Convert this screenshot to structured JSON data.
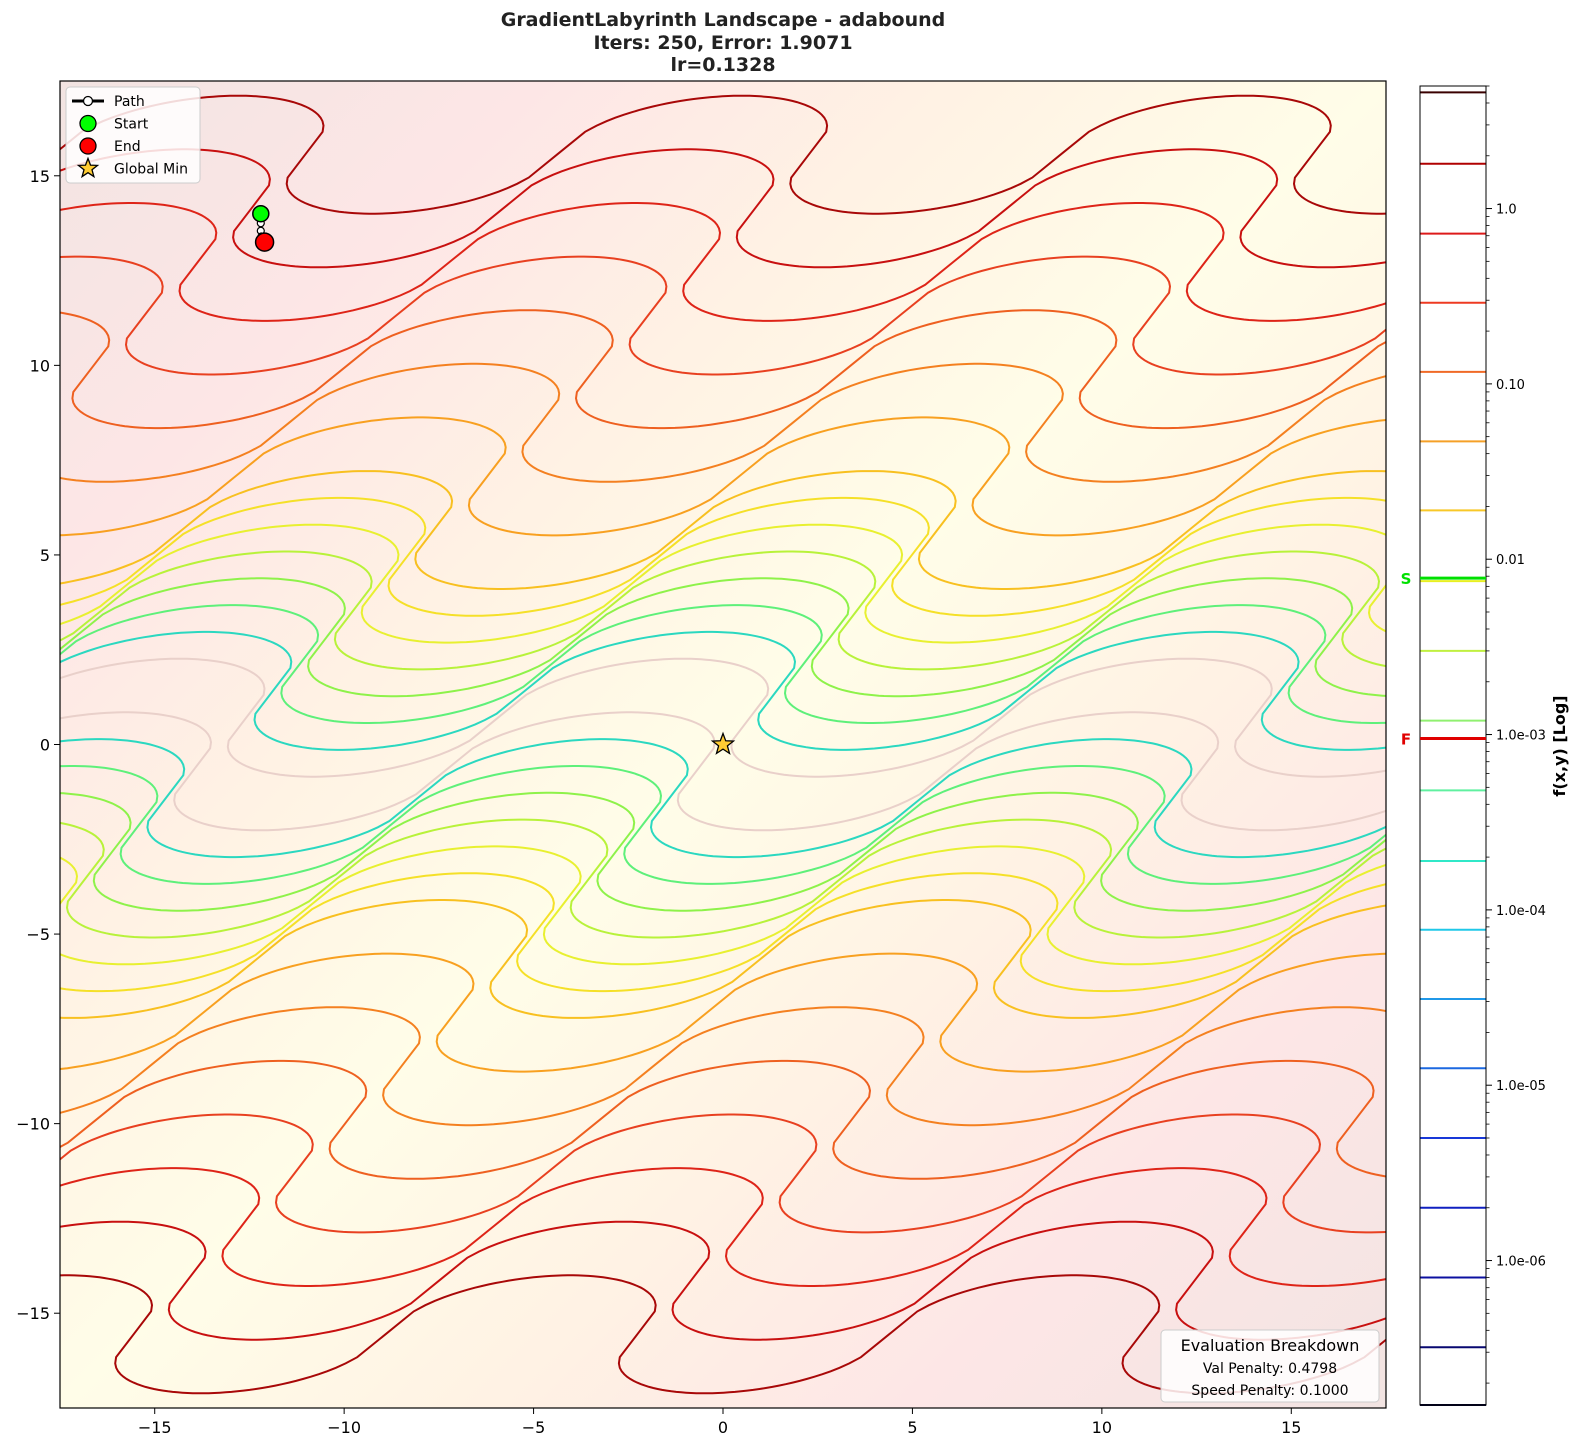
{
  "chart_data": {
    "type": "contour",
    "title_lines": [
      "GradientLabyrinth Landscape - adabound",
      "Iters: 250, Error: 1.9071",
      "lr=0.1328"
    ],
    "xlim": [
      -17.5,
      17.5
    ],
    "ylim": [
      -17.5,
      17.5
    ],
    "x_ticks": [
      -15,
      -10,
      -5,
      0,
      5,
      10,
      15
    ],
    "y_ticks": [
      -15,
      -10,
      -5,
      0,
      5,
      10,
      15
    ],
    "x_tick_labels": [
      "−15",
      "−10",
      "−5",
      "0",
      "5",
      "10",
      "15"
    ],
    "y_tick_labels": [
      "−15",
      "−10",
      "−5",
      "0",
      "5",
      "10",
      "15"
    ],
    "legend": {
      "placement": "top-left",
      "entries": [
        {
          "label": "Path",
          "marker": "line-circle",
          "color": "#000000"
        },
        {
          "label": "Start",
          "marker": "circle",
          "color": "#00ff00"
        },
        {
          "label": "End",
          "marker": "circle",
          "color": "#ff0000"
        },
        {
          "label": "Global Min",
          "marker": "star",
          "color": "#ffcc33"
        }
      ]
    },
    "path": [
      [
        -12.2,
        14.0
      ],
      [
        -12.2,
        13.75
      ],
      [
        -12.2,
        13.55
      ],
      [
        -12.18,
        13.4
      ],
      [
        -12.16,
        13.3
      ],
      [
        -12.14,
        13.22
      ],
      [
        -12.12,
        13.2
      ],
      [
        -12.1,
        13.2
      ]
    ],
    "start": [
      -12.2,
      14.0
    ],
    "end": [
      -12.1,
      13.25
    ],
    "global_min": [
      0,
      0
    ],
    "contour_levels": [
      {
        "level": 1,
        "color": "#e9d0ca"
      },
      {
        "level": 2,
        "color": "#2bd8c0"
      },
      {
        "level": 3,
        "color": "#5ef07a"
      },
      {
        "level": 4,
        "color": "#8ef24a"
      },
      {
        "level": 5,
        "color": "#b8f23a"
      },
      {
        "level": 6,
        "color": "#e8f030"
      },
      {
        "level": 7,
        "color": "#f5e028"
      },
      {
        "level": 8,
        "color": "#f8c020"
      },
      {
        "level": 10,
        "color": "#f8a020"
      },
      {
        "level": 12,
        "color": "#f48020"
      },
      {
        "level": 14,
        "color": "#ee6020"
      },
      {
        "level": 16,
        "color": "#e84020"
      },
      {
        "level": 18,
        "color": "#de2418"
      },
      {
        "level": 20,
        "color": "#c81010"
      },
      {
        "level": 22,
        "color": "#a80808"
      }
    ],
    "evaluation_box": {
      "title": "Evaluation Breakdown",
      "lines": [
        "Val Penalty: 0.4798",
        "Speed Penalty: 0.1000"
      ],
      "placement": "bottom-right"
    },
    "colorbar": {
      "label": "f(x,y) [Log]",
      "scale": "log",
      "range": [
        1.5e-07,
        5.0
      ],
      "tick_values": [
        1.0,
        0.1,
        0.01,
        0.001,
        0.0001,
        1e-05,
        1e-06
      ],
      "tick_labels": [
        "1.0",
        "0.10",
        "0.01",
        "1.0e-03",
        "1.0e-04",
        "1.0e-05",
        "1.0e-06"
      ],
      "line_values": [
        4.6,
        1.8,
        0.72,
        0.29,
        0.117,
        0.047,
        0.019,
        0.0075,
        0.003,
        0.0012,
        0.00048,
        0.00019,
        7.7e-05,
        3.1e-05,
        1.25e-05,
        5e-06,
        2e-06,
        8e-07,
        3.2e-07,
        1.5e-07
      ],
      "line_colors": [
        "#3a0000",
        "#b00000",
        "#dd1a1a",
        "#ee3a22",
        "#f06a26",
        "#f5a028",
        "#f8c828",
        "#e8f020",
        "#c0f040",
        "#90f070",
        "#60f0a0",
        "#30e8c8",
        "#20c8e8",
        "#2098e8",
        "#1c68e0",
        "#1838d8",
        "#1020c0",
        "#0c10a0",
        "#080870",
        "#040430"
      ],
      "markers": [
        {
          "label": "S",
          "value": 0.0078,
          "color": "#00e000"
        },
        {
          "label": "F",
          "value": 0.00095,
          "color": "#e00000"
        }
      ]
    }
  }
}
